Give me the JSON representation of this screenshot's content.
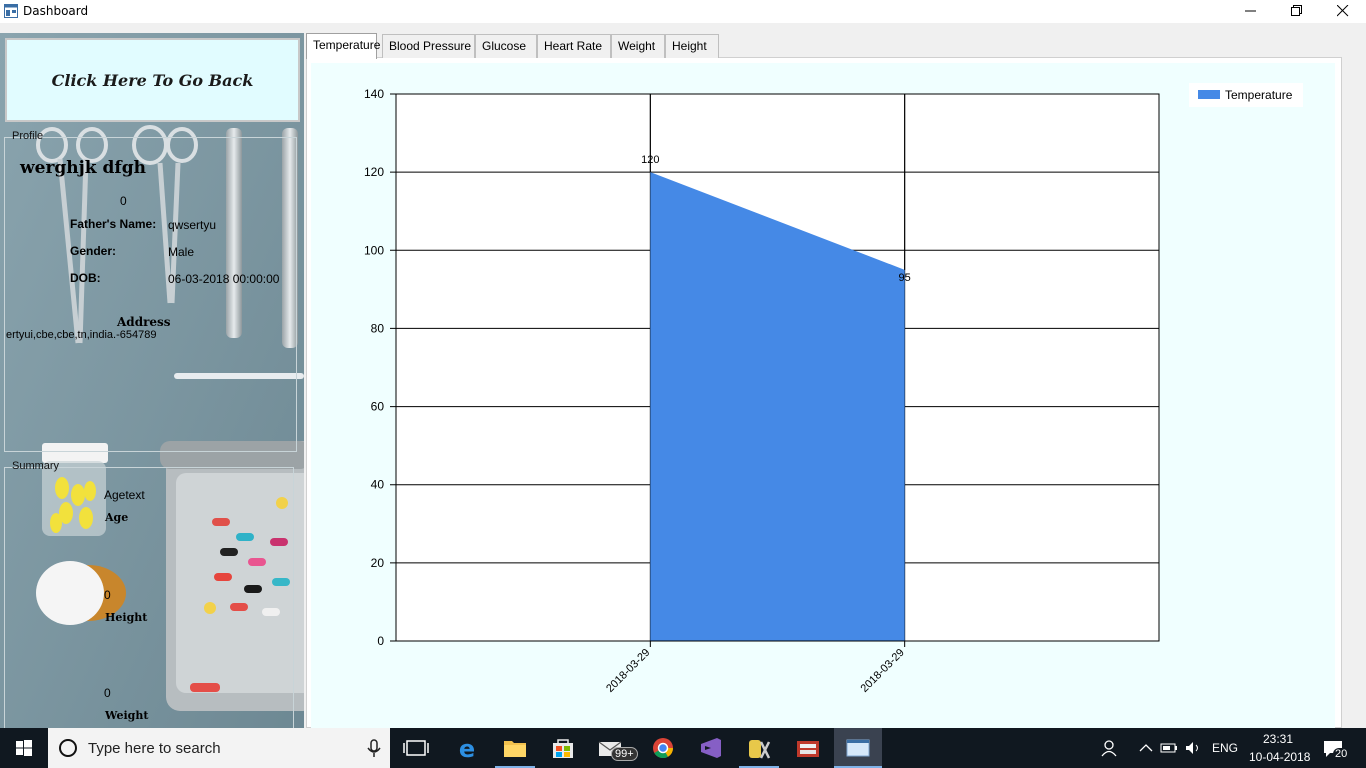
{
  "window": {
    "title": "Dashboard"
  },
  "left": {
    "back_button": "Click Here To Go Back",
    "profile": {
      "group_label": "Profile",
      "name": "werghjk dfgh",
      "id_value": "0",
      "father_label": "Father's Name:",
      "father_value": "qwsertyu",
      "gender_label": "Gender:",
      "gender_value": "Male",
      "dob_label": "DOB:",
      "dob_value": "06-03-2018 00:00:00",
      "address_label": "Address",
      "address_value": "ertyui,cbe,cbe,tn,india.-654789"
    },
    "summary": {
      "group_label": "Summary",
      "age_value": "Agetext",
      "age_label": "Age",
      "height_value": "0",
      "height_label": "Height",
      "weight_value": "0",
      "weight_label": "Weight"
    }
  },
  "tabs": [
    "Temperature",
    "Blood Pressure",
    "Glucose",
    "Heart Rate",
    "Weight",
    "Height"
  ],
  "active_tab": "Temperature",
  "chart_data": {
    "type": "area",
    "x": [
      "2018-03-29",
      "2018-03-29"
    ],
    "series": [
      {
        "name": "Temperature",
        "values": [
          120,
          95
        ],
        "color": "#4589e6"
      }
    ],
    "data_labels": [
      "120",
      "95"
    ],
    "ylim": [
      0,
      140
    ],
    "y_ticks": [
      0,
      20,
      40,
      60,
      80,
      100,
      120,
      140
    ],
    "grid": true,
    "legend": "top-right"
  },
  "taskbar": {
    "search_placeholder": "Type here to search",
    "mail_badge": "99+",
    "language": "ENG",
    "time": "23:31",
    "date": "10-04-2018",
    "notification_count": "20"
  }
}
